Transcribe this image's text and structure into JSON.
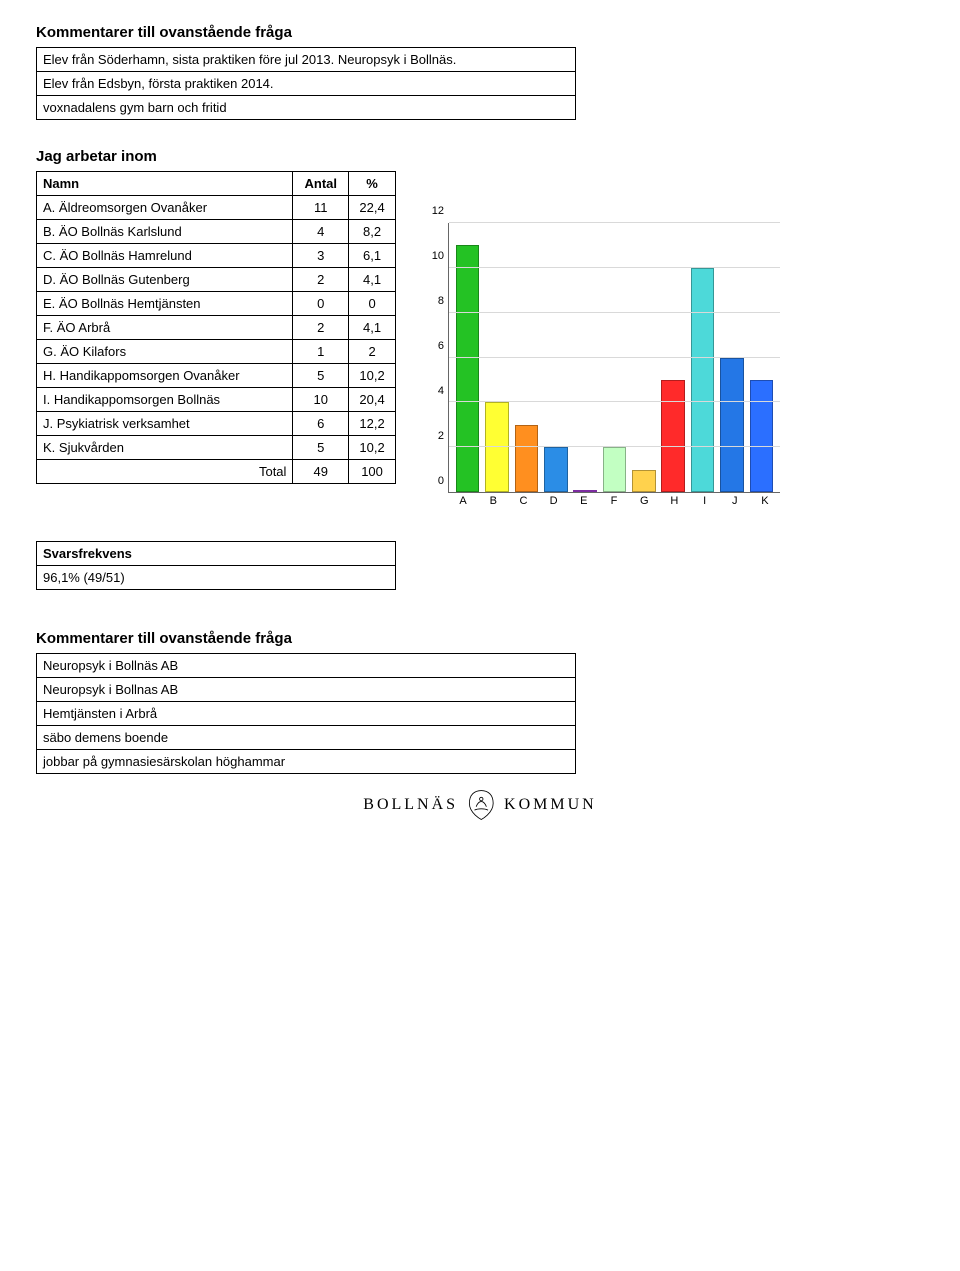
{
  "section1_title": "Kommentarer till ovanstående fråga",
  "section1_comments": [
    "Elev från Söderhamn, sista praktiken före jul 2013. Neuropsyk i Bollnäs.",
    "Elev från Edsbyn, första praktiken 2014.",
    "voxnadalens gym barn och fritid"
  ],
  "section2_title": "Jag arbetar inom",
  "table": {
    "headers": [
      "Namn",
      "Antal",
      "%"
    ],
    "rows": [
      {
        "label": "A. Äldreomsorgen Ovanåker",
        "count": "11",
        "pct": "22,4"
      },
      {
        "label": "B. ÄO Bollnäs Karlslund",
        "count": "4",
        "pct": "8,2"
      },
      {
        "label": "C. ÄO Bollnäs Hamrelund",
        "count": "3",
        "pct": "6,1"
      },
      {
        "label": "D. ÄO Bollnäs Gutenberg",
        "count": "2",
        "pct": "4,1"
      },
      {
        "label": "E. ÄO Bollnäs Hemtjänsten",
        "count": "0",
        "pct": "0"
      },
      {
        "label": "F. ÄO Arbrå",
        "count": "2",
        "pct": "4,1"
      },
      {
        "label": "G. ÄO Kilafors",
        "count": "1",
        "pct": "2"
      },
      {
        "label": "H. Handikappomsorgen Ovanåker",
        "count": "5",
        "pct": "10,2"
      },
      {
        "label": "I. Handikappomsorgen Bollnäs",
        "count": "10",
        "pct": "20,4"
      },
      {
        "label": "J. Psykiatrisk verksamhet",
        "count": "6",
        "pct": "12,2"
      },
      {
        "label": "K. Sjukvården",
        "count": "5",
        "pct": "10,2"
      }
    ],
    "total_label": "Total",
    "total_count": "49",
    "total_pct": "100"
  },
  "chart": {
    "type": "bar",
    "categories": [
      "A",
      "B",
      "C",
      "D",
      "E",
      "F",
      "G",
      "H",
      "I",
      "J",
      "K"
    ],
    "values": [
      11,
      4,
      3,
      2,
      0,
      2,
      1,
      5,
      10,
      6,
      5
    ],
    "bar_colors": [
      "#24c224",
      "#ffff33",
      "#ff8f1f",
      "#2b8de6",
      "#b23fe6",
      "#c2ffc2",
      "#ffd24d",
      "#ff2a2a",
      "#4dd9d9",
      "#2477e6",
      "#2b6fff"
    ],
    "ylim": [
      0,
      12
    ],
    "ytick_step": 2,
    "grid_color": "#d9d9d9",
    "axis_color": "#666666",
    "label_fontsize": 11,
    "background_color": "#ffffff",
    "bar_width": 0.8
  },
  "svars_title": "Svarsfrekvens",
  "svars_value": "96,1% (49/51)",
  "section3_title": "Kommentarer till ovanstående fråga",
  "section3_comments": [
    "Neuropsyk i Bollnäs AB",
    "Neuropsyk i Bollnas AB",
    "Hemtjänsten i Arbrå",
    "säbo demens boende",
    "jobbar på gymnasiesärskolan höghammar"
  ],
  "footer_left": "BOLLNÄS",
  "footer_right": "KOMMUN"
}
